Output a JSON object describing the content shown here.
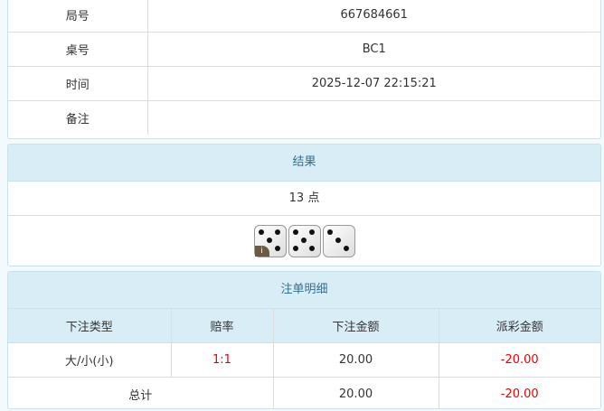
{
  "info": {
    "rows": [
      {
        "label": "局号",
        "value": "667684661"
      },
      {
        "label": "桌号",
        "value": "BC1"
      },
      {
        "label": "时间",
        "value": "2025-12-07 22:15:21"
      },
      {
        "label": "备注",
        "value": ""
      }
    ]
  },
  "result": {
    "title": "结果",
    "points": "13 点",
    "dice": [
      5,
      5,
      3
    ],
    "info_badge": "i"
  },
  "bets": {
    "title": "注单明细",
    "headers": [
      "下注类型",
      "赔率",
      "下注金额",
      "派彩金额"
    ],
    "rows": [
      {
        "type": "大/小(小)",
        "odds": "1:1",
        "amount": "20.00",
        "payout": "-20.00"
      }
    ],
    "total": {
      "label": "总计",
      "amount": "20.00",
      "payout": "-20.00"
    }
  },
  "colors": {
    "header_bg": "#d9edf7",
    "negative": "#ee0000"
  }
}
